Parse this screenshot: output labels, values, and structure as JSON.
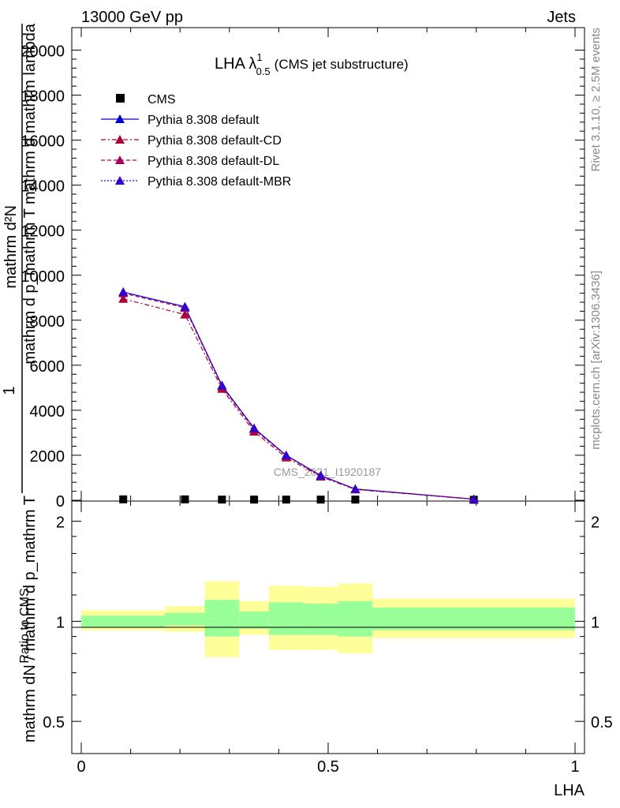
{
  "header": {
    "left": "13000 GeV pp",
    "right": "Jets"
  },
  "side_labels": {
    "rivet": "Rivet 3.1.10, ≥ 2.5M events",
    "mcplots": "mcplots.cern.ch [arXiv:1306.3436]"
  },
  "main_plot": {
    "title": "LHA λ",
    "title_sup": "1",
    "title_sub": "0.5",
    "title_suffix": "(CMS jet substructure)",
    "ylabel_top": "mathrm d²N",
    "ylabel_bottom": "mathrm d p_mathrm T mathrm d mathrm lambda",
    "ylabel_prefix_num": "1",
    "ylabel_prefix_den": "mathrm dN / mathrm d p_mathrm T",
    "watermark": "CMS_2021_I1920187",
    "yticks": [
      "0",
      "2000",
      "4000",
      "6000",
      "8000",
      "10000",
      "12000",
      "14000",
      "16000",
      "18000",
      "20000"
    ]
  },
  "ratio_plot": {
    "ylabel": "Ratio to CMS",
    "yticks": [
      "0.5",
      "1",
      "2"
    ],
    "xticks": [
      "0",
      "0.5",
      "1"
    ],
    "xlabel": "LHA"
  },
  "legend": [
    {
      "name": "CMS",
      "color": "#000000",
      "style": "marker-square"
    },
    {
      "name": "Pythia 8.308 default",
      "color": "#0000cc",
      "style": "solid"
    },
    {
      "name": "Pythia 8.308 default-CD",
      "color": "#aa0033",
      "style": "dashdot"
    },
    {
      "name": "Pythia 8.308 default-DL",
      "color": "#aa0055",
      "style": "dashed"
    },
    {
      "name": "Pythia 8.308 default-MBR",
      "color": "#3300cc",
      "style": "dotted"
    }
  ],
  "chart_data": {
    "type": "line",
    "title": "LHA λ^1_0.5 (CMS jet substructure)",
    "xlabel": "LHA",
    "xlim": [
      0,
      1
    ],
    "ylim": [
      0,
      21000
    ],
    "ratio_ylim_log": [
      0.4,
      2.3
    ],
    "grid": false,
    "legend_position": "top-left",
    "x": [
      0.085,
      0.21,
      0.285,
      0.35,
      0.415,
      0.485,
      0.555,
      0.795
    ],
    "bin_edges": [
      0,
      0.17,
      0.25,
      0.32,
      0.38,
      0.45,
      0.52,
      0.59,
      1.0
    ],
    "series": [
      {
        "name": "CMS",
        "values": [
          40,
          40,
          30,
          30,
          30,
          30,
          30,
          20
        ]
      },
      {
        "name": "Pythia 8.308 default",
        "values": [
          9250,
          8600,
          5100,
          3200,
          2000,
          1100,
          500,
          50
        ]
      },
      {
        "name": "Pythia 8.308 default-CD",
        "values": [
          8950,
          8250,
          4950,
          3050,
          1900,
          1050,
          480,
          45
        ]
      },
      {
        "name": "Pythia 8.308 default-DL",
        "values": [
          9200,
          8550,
          5050,
          3150,
          1980,
          1090,
          495,
          50
        ]
      },
      {
        "name": "Pythia 8.308 default-MBR",
        "values": [
          9250,
          8600,
          5100,
          3200,
          2000,
          1100,
          500,
          50
        ]
      }
    ],
    "ratio_band_inner": [
      [
        0.96,
        1.04
      ],
      [
        0.97,
        1.06
      ],
      [
        0.9,
        1.16
      ],
      [
        0.95,
        1.07
      ],
      [
        0.91,
        1.14
      ],
      [
        0.91,
        1.13
      ],
      [
        0.9,
        1.15
      ],
      [
        0.94,
        1.1
      ]
    ],
    "ratio_band_outer": [
      [
        0.94,
        1.08
      ],
      [
        0.93,
        1.11
      ],
      [
        0.78,
        1.32
      ],
      [
        0.91,
        1.15
      ],
      [
        0.82,
        1.28
      ],
      [
        0.82,
        1.27
      ],
      [
        0.8,
        1.3
      ],
      [
        0.89,
        1.17
      ]
    ]
  }
}
